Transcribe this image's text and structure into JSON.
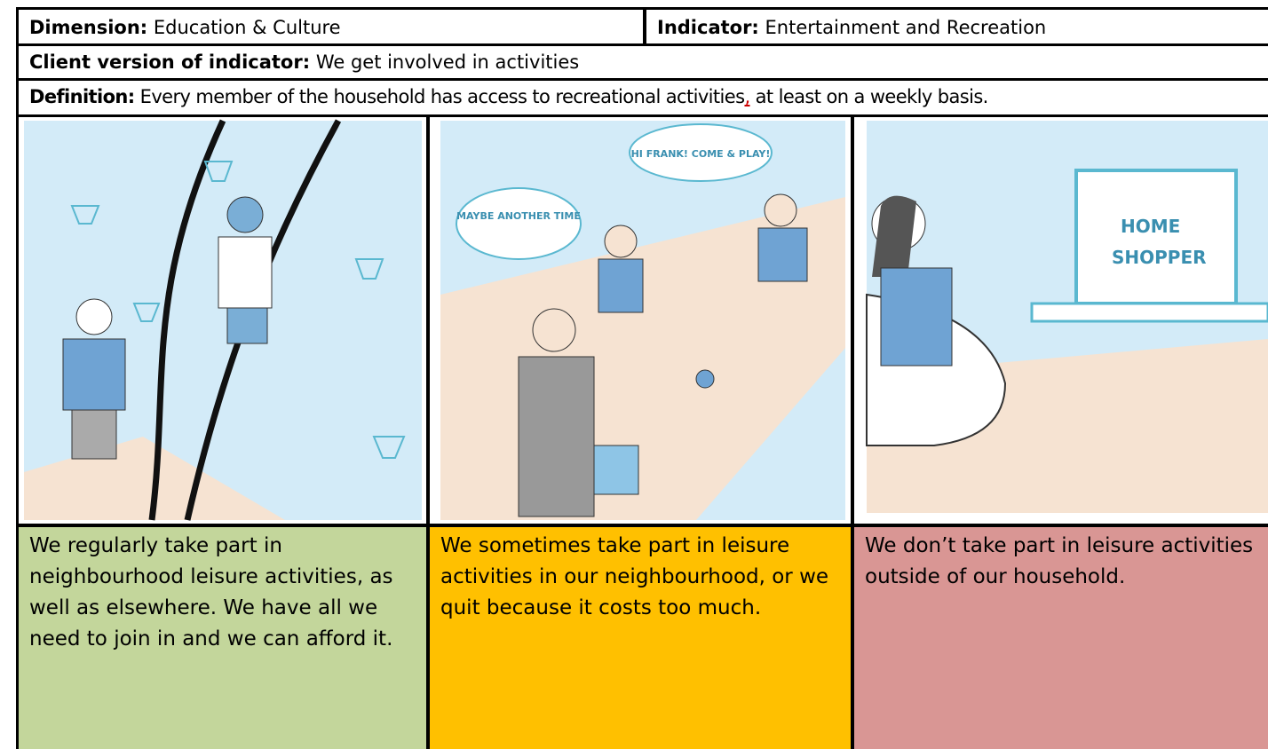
{
  "header": {
    "dimension": {
      "label": "Dimension:",
      "value": "Education & Culture"
    },
    "indicator": {
      "label": "Indicator:",
      "value": "Entertainment and Recreation"
    }
  },
  "client_version": {
    "label": "Client version of indicator:",
    "value": "We get involved in activities"
  },
  "definition": {
    "label": "Definition:",
    "parts": [
      "Every member of the household has access to recreational activities",
      ",",
      "at least on a weekly basis."
    ]
  },
  "panels": [
    {
      "bubbles": []
    },
    {
      "bubbles": [
        "MAYBE ANOTHER TIME",
        "HI FRANK! COME & PLAY!"
      ]
    },
    {
      "bubbles": [
        "HOME",
        "SHOPPER"
      ]
    }
  ],
  "levels": [
    {
      "text": "We regularly take part in neighbourhood leisure activities, as well as elsewhere. We have all we need to join in and we can afford it."
    },
    {
      "text": "We sometimes take part in leisure activities in our neighbourhood, or we quit because it costs too much."
    },
    {
      "text": "We don’t take part in leisure activities outside of our household."
    }
  ]
}
